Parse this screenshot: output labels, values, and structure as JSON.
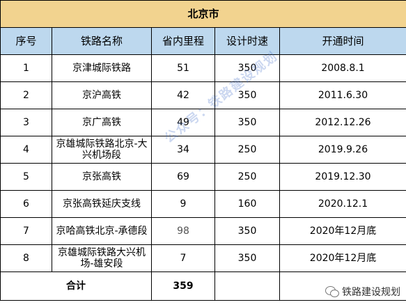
{
  "table": {
    "title": "北京市",
    "headers": [
      "序号",
      "铁路名称",
      "省内里程",
      "设计时速",
      "开通时间"
    ],
    "rows": [
      {
        "no": "1",
        "name": "京津城际铁路",
        "length": "51",
        "speed": "350",
        "opened": "2008.8.1"
      },
      {
        "no": "2",
        "name": "京沪高铁",
        "length": "42",
        "speed": "350",
        "opened": "2011.6.30"
      },
      {
        "no": "3",
        "name": "京广高铁",
        "length": "49",
        "speed": "350",
        "opened": "2012.12.26"
      },
      {
        "no": "4",
        "name": "京雄城际铁路北京-大兴机场段",
        "length": "34",
        "speed": "250",
        "opened": "2019.9.26"
      },
      {
        "no": "5",
        "name": "京张高铁",
        "length": "69",
        "speed": "250",
        "opened": "2019.12.30"
      },
      {
        "no": "6",
        "name": "京张高铁延庆支线",
        "length": "9",
        "speed": "160",
        "opened": "2020.12.1"
      },
      {
        "no": "7",
        "name": "京哈高铁北京-承德段",
        "length": "98",
        "speed": "350",
        "opened": "2020年12月底"
      },
      {
        "no": "8",
        "name": "京雄城际铁路大兴机场-雄安段",
        "length": "7",
        "speed": "350",
        "opened": "2020年12月底"
      }
    ],
    "total": {
      "label": "合计",
      "value": "359"
    }
  },
  "watermark": {
    "text": "公众号：铁路建设规划"
  },
  "badge": {
    "icon": "wechat-icon",
    "text": "铁路建设规划"
  },
  "colors": {
    "title_bg": "#f2d38f",
    "header_bg": "#bdd8ee",
    "watermark": "#466ec8"
  }
}
